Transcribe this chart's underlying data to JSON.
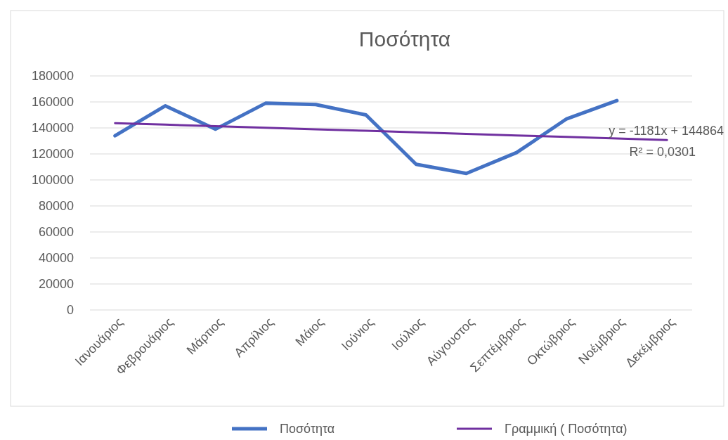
{
  "chart_data": {
    "type": "line",
    "title": "Ποσότητα",
    "categories": [
      "Ιανουάριος",
      "Φεβρουάριος",
      "Μάρτιος",
      "Απρίλιος",
      "Μάιος",
      "Ιούνιος",
      "Ιούλιος",
      "Αύγουστος",
      "Σεπτέμβριος",
      "Οκτώβριος",
      "Νοέμβριος",
      "Δεκέμβριος"
    ],
    "series": [
      {
        "name": "Ποσότητα",
        "color": "#4472c4",
        "values": [
          134000,
          157000,
          139000,
          159000,
          158000,
          150000,
          112000,
          105000,
          121000,
          147000,
          161000,
          null
        ]
      },
      {
        "name": "Γραμμική ( Ποσότητα)",
        "color": "#7030a0",
        "type": "line",
        "values": [
          143683,
          142502,
          141321,
          140140,
          138959,
          137778,
          136597,
          135416,
          134235,
          133054,
          131873,
          130692
        ]
      }
    ],
    "ylim": [
      0,
      180000
    ],
    "yticks": [
      0,
      20000,
      40000,
      60000,
      80000,
      100000,
      120000,
      140000,
      160000,
      180000
    ],
    "grid": "y",
    "legend": "bottom",
    "marker": "none",
    "line_style": "solid",
    "annotations": [
      "y = -1181x + 144864",
      "R² = 0,0301"
    ]
  }
}
